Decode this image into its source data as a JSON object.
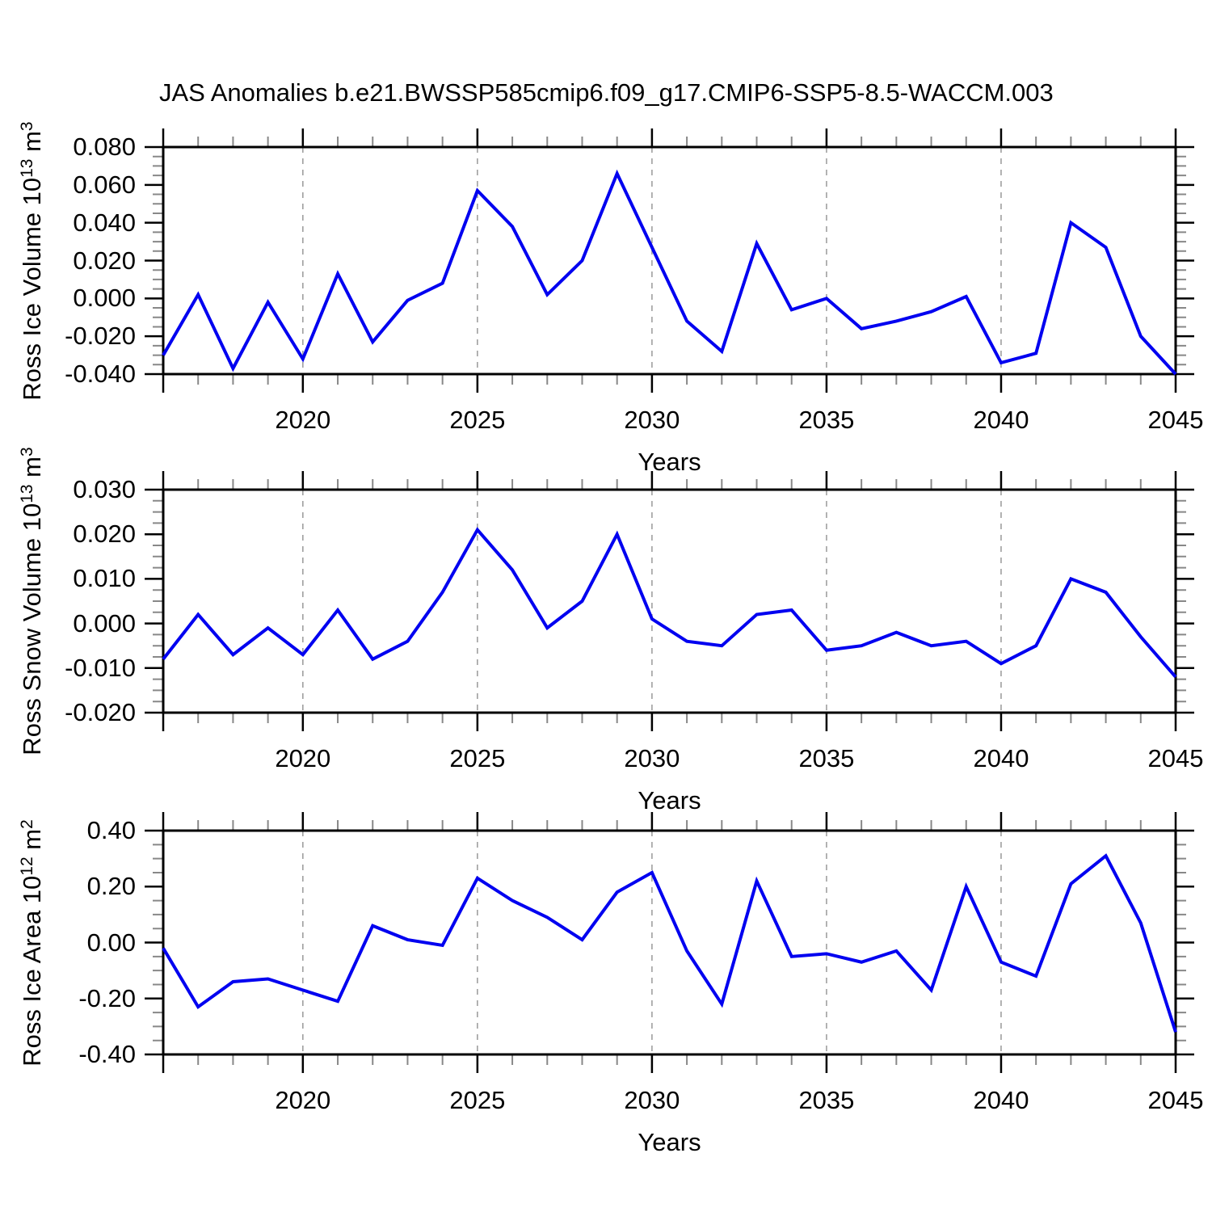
{
  "title": "JAS Anomalies b.e21.BWSSP585cmip6.f09_g17.CMIP6-SSP5-8.5-WACCM.003",
  "colors": {
    "line": "#0000f0",
    "axis": "#000000",
    "major_tick": "#000000",
    "minor_tick": "#888888",
    "gridline": "#999999",
    "text": "#000000",
    "background": "#ffffff"
  },
  "chart_data": [
    {
      "type": "line",
      "panel": "ross-ice-volume",
      "ylabel_text": "Ross Ice Volume 10^13 m^3",
      "ylabel_parts": [
        {
          "type": "text",
          "text": "Ross Ice Volume 10"
        },
        {
          "type": "sup",
          "text": "13"
        },
        {
          "type": "text",
          "text": " m"
        },
        {
          "type": "sup",
          "text": "3"
        }
      ],
      "xlabel": "Years",
      "x_tick_labels": [
        "2020",
        "2025",
        "2030",
        "2035",
        "2040",
        "2045"
      ],
      "x_labeled_ticks": [
        2020,
        2025,
        2030,
        2035,
        2040,
        2045
      ],
      "x_gridlines": [
        2020,
        2025,
        2030,
        2035,
        2040
      ],
      "xlim": [
        2016,
        2045
      ],
      "ylim": [
        -0.04,
        0.08
      ],
      "y_major_step": 0.02,
      "y_minor_step": 0.005,
      "y_tick_labels": [
        "0.080",
        "0.060",
        "0.040",
        "0.020",
        "0.000",
        "-0.020",
        "-0.040"
      ],
      "grid": "vertical-dashed",
      "legend": "none",
      "years": [
        2016,
        2017,
        2018,
        2019,
        2020,
        2021,
        2022,
        2023,
        2024,
        2025,
        2026,
        2027,
        2028,
        2029,
        2030,
        2031,
        2032,
        2033,
        2034,
        2035,
        2036,
        2037,
        2038,
        2039,
        2040,
        2041,
        2042,
        2043,
        2044,
        2045
      ],
      "values": [
        -0.03,
        0.002,
        -0.037,
        -0.002,
        -0.032,
        0.013,
        -0.023,
        -0.001,
        0.008,
        0.057,
        0.038,
        0.002,
        0.02,
        0.066,
        0.027,
        -0.012,
        -0.028,
        0.029,
        -0.006,
        0.0,
        -0.016,
        -0.012,
        -0.007,
        0.001,
        -0.034,
        -0.029,
        0.04,
        0.027,
        -0.02,
        -0.04
      ]
    },
    {
      "type": "line",
      "panel": "ross-snow-volume",
      "ylabel_text": "Ross Snow Volume 10^13 m^3",
      "ylabel_parts": [
        {
          "type": "text",
          "text": "Ross Snow Volume 10"
        },
        {
          "type": "sup",
          "text": "13"
        },
        {
          "type": "text",
          "text": " m"
        },
        {
          "type": "sup",
          "text": "3"
        }
      ],
      "xlabel": "Years",
      "x_tick_labels": [
        "2020",
        "2025",
        "2030",
        "2035",
        "2040",
        "2045"
      ],
      "x_labeled_ticks": [
        2020,
        2025,
        2030,
        2035,
        2040,
        2045
      ],
      "x_gridlines": [
        2020,
        2025,
        2030,
        2035,
        2040
      ],
      "xlim": [
        2016,
        2045
      ],
      "ylim": [
        -0.02,
        0.03
      ],
      "y_major_step": 0.01,
      "y_minor_step": 0.0025,
      "y_tick_labels": [
        "0.030",
        "0.020",
        "0.010",
        "0.000",
        "-0.010",
        "-0.020"
      ],
      "grid": "vertical-dashed",
      "legend": "none",
      "years": [
        2016,
        2017,
        2018,
        2019,
        2020,
        2021,
        2022,
        2023,
        2024,
        2025,
        2026,
        2027,
        2028,
        2029,
        2030,
        2031,
        2032,
        2033,
        2034,
        2035,
        2036,
        2037,
        2038,
        2039,
        2040,
        2041,
        2042,
        2043,
        2044,
        2045
      ],
      "values": [
        -0.008,
        0.002,
        -0.007,
        -0.001,
        -0.007,
        0.003,
        -0.008,
        -0.004,
        0.007,
        0.021,
        0.012,
        -0.001,
        0.005,
        0.02,
        0.001,
        -0.004,
        -0.005,
        0.002,
        0.003,
        -0.006,
        -0.005,
        -0.002,
        -0.005,
        -0.004,
        -0.009,
        -0.005,
        0.01,
        0.007,
        -0.003,
        -0.012
      ]
    },
    {
      "type": "line",
      "panel": "ross-ice-area",
      "ylabel_text": "Ross Ice Area 10^12 m^2",
      "ylabel_parts": [
        {
          "type": "text",
          "text": "Ross Ice Area 10"
        },
        {
          "type": "sup",
          "text": "12"
        },
        {
          "type": "text",
          "text": " m"
        },
        {
          "type": "sup",
          "text": "2"
        }
      ],
      "xlabel": "Years",
      "x_tick_labels": [
        "2020",
        "2025",
        "2030",
        "2035",
        "2040",
        "2045"
      ],
      "x_labeled_ticks": [
        2020,
        2025,
        2030,
        2035,
        2040,
        2045
      ],
      "x_gridlines": [
        2020,
        2025,
        2030,
        2035,
        2040
      ],
      "xlim": [
        2016,
        2045
      ],
      "ylim": [
        -0.4,
        0.4
      ],
      "y_major_step": 0.2,
      "y_minor_step": 0.05,
      "y_tick_labels": [
        "0.40",
        "0.20",
        "0.00",
        "-0.20",
        "-0.40"
      ],
      "grid": "vertical-dashed",
      "legend": "none",
      "years": [
        2016,
        2017,
        2018,
        2019,
        2020,
        2021,
        2022,
        2023,
        2024,
        2025,
        2026,
        2027,
        2028,
        2029,
        2030,
        2031,
        2032,
        2033,
        2034,
        2035,
        2036,
        2037,
        2038,
        2039,
        2040,
        2041,
        2042,
        2043,
        2044,
        2045
      ],
      "values": [
        -0.02,
        -0.23,
        -0.14,
        -0.13,
        -0.17,
        -0.21,
        0.06,
        0.01,
        -0.01,
        0.23,
        0.15,
        0.09,
        0.01,
        0.18,
        0.25,
        -0.03,
        -0.22,
        0.22,
        -0.05,
        -0.04,
        -0.07,
        -0.03,
        -0.17,
        0.2,
        -0.07,
        -0.12,
        0.21,
        0.31,
        0.07,
        -0.32
      ]
    }
  ]
}
